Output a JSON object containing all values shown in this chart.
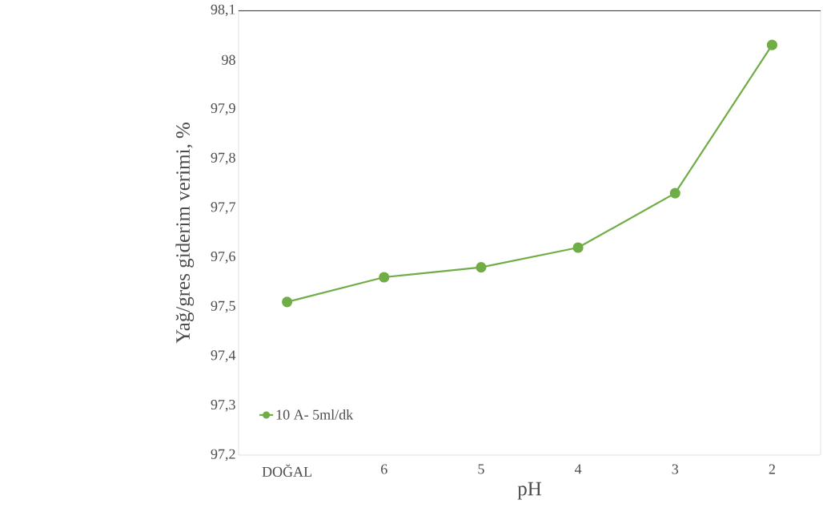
{
  "chart_data": {
    "type": "line",
    "xlabel": "pH",
    "ylabel": "Yağ/gres giderim verimi, %",
    "categories": [
      "DOĞAL",
      "6",
      "5",
      "4",
      "3",
      "2"
    ],
    "series": [
      {
        "name": "10 A-  5ml/dk",
        "color": "#70ad47",
        "values": [
          97.51,
          97.56,
          97.58,
          97.62,
          97.73,
          98.03
        ]
      }
    ],
    "ylim": [
      97.2,
      98.1
    ],
    "yticks": [
      {
        "value": 97.2,
        "label": "97,2"
      },
      {
        "value": 97.3,
        "label": "97,3"
      },
      {
        "value": 97.4,
        "label": "97,4"
      },
      {
        "value": 97.5,
        "label": "97,5"
      },
      {
        "value": 97.6,
        "label": "97,6"
      },
      {
        "value": 97.7,
        "label": "97,7"
      },
      {
        "value": 97.8,
        "label": "97,8"
      },
      {
        "value": 97.9,
        "label": "97,9"
      },
      98,
      {
        "value": 98.1,
        "label": "98,1"
      }
    ],
    "grid": false,
    "legend": "bottom left",
    "marker": "circle",
    "line_style": "solid"
  }
}
